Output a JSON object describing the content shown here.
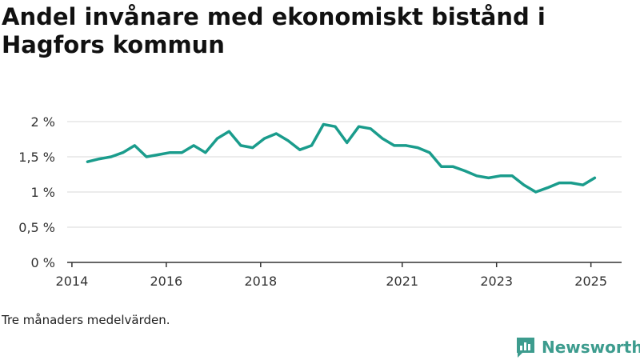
{
  "header": {
    "title": "Andel invånare med ekonomiskt bistånd i Hagfors kommun"
  },
  "footnote": "Tre månaders medelvärden.",
  "brand": {
    "name": "Newsworthy",
    "icon": "newsworthy-logo-icon"
  },
  "colors": {
    "line": "#1a9c8c",
    "grid": "#d9d9d9",
    "axis": "#333333",
    "brand": "#3d9c8e"
  },
  "chart_data": {
    "type": "line",
    "title": "Andel invånare med ekonomiskt bistånd i Hagfors kommun",
    "xlabel": "",
    "ylabel": "",
    "x_ticks": [
      {
        "value": 2014.0,
        "label": "2014"
      },
      {
        "value": 2016.0,
        "label": "2016"
      },
      {
        "value": 2018.0,
        "label": "2018"
      },
      {
        "value": 2021.0,
        "label": "2021"
      },
      {
        "value": 2023.0,
        "label": "2023"
      },
      {
        "value": 2025.0,
        "label": "2025"
      }
    ],
    "y_ticks": [
      {
        "value": 0,
        "label": "0 %"
      },
      {
        "value": 0.5,
        "label": "0,5 %"
      },
      {
        "value": 1,
        "label": "1 %"
      },
      {
        "value": 1.5,
        "label": "1,5 %"
      },
      {
        "value": 2,
        "label": "2 %"
      }
    ],
    "xlim": [
      2013.9,
      2025.65
    ],
    "ylim": [
      0,
      2
    ],
    "grid": true,
    "series": [
      {
        "x": [
          2014.33,
          2014.58,
          2014.83,
          2015.08,
          2015.33,
          2015.58,
          2015.83,
          2016.08,
          2016.33,
          2016.58,
          2016.83,
          2017.08,
          2017.33,
          2017.58,
          2017.83,
          2018.08,
          2018.33,
          2018.58,
          2018.83,
          2019.08,
          2019.33,
          2019.58,
          2019.83,
          2020.08,
          2020.33,
          2020.58,
          2020.83,
          2021.08,
          2021.33,
          2021.58,
          2021.83,
          2022.08,
          2022.33,
          2022.58,
          2022.83,
          2023.08,
          2023.33,
          2023.58,
          2023.83,
          2024.08,
          2024.33,
          2024.58,
          2024.83,
          2025.08
        ],
        "values": [
          1.43,
          1.47,
          1.5,
          1.56,
          1.66,
          1.5,
          1.53,
          1.56,
          1.56,
          1.66,
          1.56,
          1.76,
          1.86,
          1.66,
          1.63,
          1.76,
          1.83,
          1.73,
          1.6,
          1.66,
          1.96,
          1.93,
          1.7,
          1.93,
          1.9,
          1.76,
          1.66,
          1.66,
          1.63,
          1.56,
          1.36,
          1.36,
          1.3,
          1.23,
          1.2,
          1.23,
          1.23,
          1.1,
          1.0,
          1.06,
          1.13,
          1.13,
          1.1,
          1.2
        ]
      }
    ]
  }
}
